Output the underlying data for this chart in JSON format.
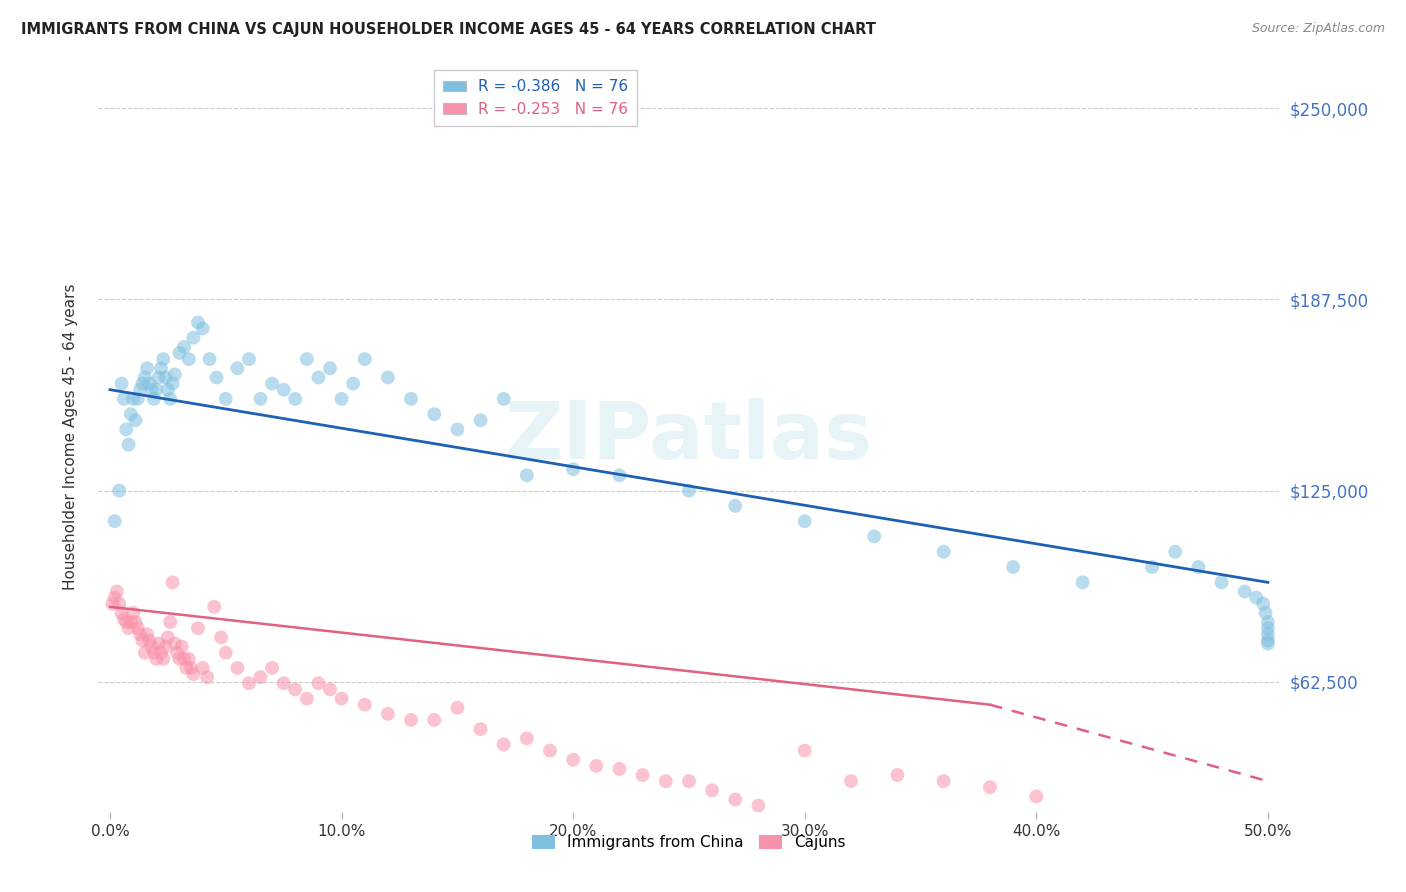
{
  "title": "IMMIGRANTS FROM CHINA VS CAJUN HOUSEHOLDER INCOME AGES 45 - 64 YEARS CORRELATION CHART",
  "source": "Source: ZipAtlas.com",
  "xlabel_ticks": [
    "0.0%",
    "10.0%",
    "20.0%",
    "30.0%",
    "40.0%",
    "50.0%"
  ],
  "xlabel_vals": [
    0.0,
    0.1,
    0.2,
    0.3,
    0.4,
    0.5
  ],
  "ylabel_ticks": [
    "$62,500",
    "$125,000",
    "$187,500",
    "$250,000"
  ],
  "ylabel_vals": [
    62500,
    125000,
    187500,
    250000
  ],
  "ylim": [
    20000,
    265000
  ],
  "xlim": [
    -0.005,
    0.505
  ],
  "china_R": -0.386,
  "china_N": 76,
  "cajun_R": -0.253,
  "cajun_N": 76,
  "china_color": "#7fbfdf",
  "cajun_color": "#f892aa",
  "china_line_color": "#2060b0",
  "cajun_line_color": "#e06080",
  "legend_label_china": "Immigrants from China",
  "legend_label_cajun": "Cajuns",
  "ylabel": "Householder Income Ages 45 - 64 years",
  "watermark": "ZIPatlas",
  "china_x": [
    0.002,
    0.004,
    0.005,
    0.006,
    0.007,
    0.008,
    0.009,
    0.01,
    0.011,
    0.012,
    0.013,
    0.014,
    0.015,
    0.016,
    0.017,
    0.018,
    0.019,
    0.02,
    0.021,
    0.022,
    0.023,
    0.024,
    0.025,
    0.026,
    0.027,
    0.028,
    0.03,
    0.032,
    0.034,
    0.036,
    0.038,
    0.04,
    0.043,
    0.046,
    0.05,
    0.055,
    0.06,
    0.065,
    0.07,
    0.075,
    0.08,
    0.085,
    0.09,
    0.095,
    0.1,
    0.105,
    0.11,
    0.12,
    0.13,
    0.14,
    0.15,
    0.16,
    0.17,
    0.18,
    0.2,
    0.22,
    0.25,
    0.27,
    0.3,
    0.33,
    0.36,
    0.39,
    0.42,
    0.45,
    0.46,
    0.47,
    0.48,
    0.49,
    0.495,
    0.498,
    0.499,
    0.5,
    0.5,
    0.5,
    0.5,
    0.5
  ],
  "china_y": [
    115000,
    125000,
    160000,
    155000,
    145000,
    140000,
    150000,
    155000,
    148000,
    155000,
    158000,
    160000,
    162000,
    165000,
    160000,
    158000,
    155000,
    158000,
    162000,
    165000,
    168000,
    162000,
    158000,
    155000,
    160000,
    163000,
    170000,
    172000,
    168000,
    175000,
    180000,
    178000,
    168000,
    162000,
    155000,
    165000,
    168000,
    155000,
    160000,
    158000,
    155000,
    168000,
    162000,
    165000,
    155000,
    160000,
    168000,
    162000,
    155000,
    150000,
    145000,
    148000,
    155000,
    130000,
    132000,
    130000,
    125000,
    120000,
    115000,
    110000,
    105000,
    100000,
    95000,
    100000,
    105000,
    100000,
    95000,
    92000,
    90000,
    88000,
    85000,
    82000,
    80000,
    78000,
    76000,
    75000
  ],
  "cajun_x": [
    0.001,
    0.002,
    0.003,
    0.004,
    0.005,
    0.006,
    0.007,
    0.008,
    0.009,
    0.01,
    0.011,
    0.012,
    0.013,
    0.014,
    0.015,
    0.016,
    0.017,
    0.018,
    0.019,
    0.02,
    0.021,
    0.022,
    0.023,
    0.024,
    0.025,
    0.026,
    0.027,
    0.028,
    0.029,
    0.03,
    0.031,
    0.032,
    0.033,
    0.034,
    0.035,
    0.036,
    0.038,
    0.04,
    0.042,
    0.045,
    0.048,
    0.05,
    0.055,
    0.06,
    0.065,
    0.07,
    0.075,
    0.08,
    0.085,
    0.09,
    0.095,
    0.1,
    0.11,
    0.12,
    0.13,
    0.14,
    0.15,
    0.16,
    0.17,
    0.18,
    0.19,
    0.2,
    0.21,
    0.22,
    0.23,
    0.24,
    0.25,
    0.26,
    0.27,
    0.28,
    0.3,
    0.32,
    0.34,
    0.36,
    0.38,
    0.4
  ],
  "cajun_y": [
    88000,
    90000,
    92000,
    88000,
    85000,
    83000,
    82000,
    80000,
    82000,
    85000,
    82000,
    80000,
    78000,
    76000,
    72000,
    78000,
    76000,
    74000,
    72000,
    70000,
    75000,
    72000,
    70000,
    74000,
    77000,
    82000,
    95000,
    75000,
    72000,
    70000,
    74000,
    70000,
    67000,
    70000,
    67000,
    65000,
    80000,
    67000,
    64000,
    87000,
    77000,
    72000,
    67000,
    62000,
    64000,
    67000,
    62000,
    60000,
    57000,
    62000,
    60000,
    57000,
    55000,
    52000,
    50000,
    50000,
    54000,
    47000,
    42000,
    44000,
    40000,
    37000,
    35000,
    34000,
    32000,
    30000,
    30000,
    27000,
    24000,
    22000,
    40000,
    30000,
    32000,
    30000,
    28000,
    25000
  ]
}
